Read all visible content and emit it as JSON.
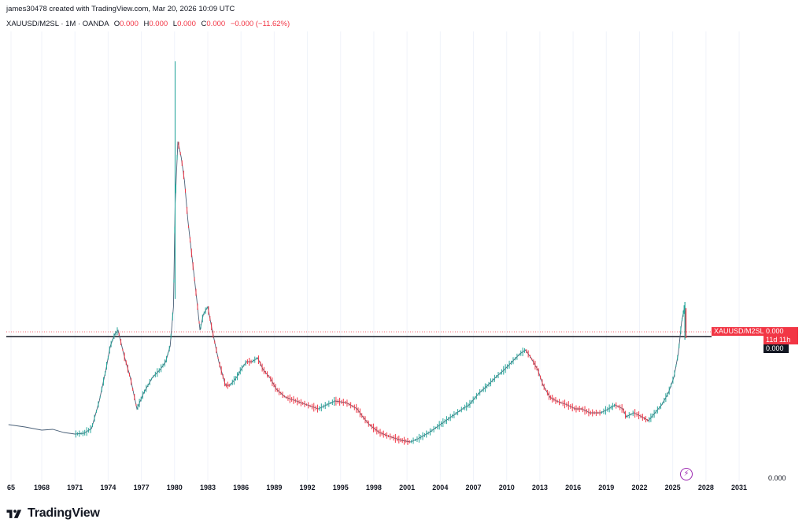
{
  "header": {
    "credit": "james30478 created with TradingView.com, Mar 20, 2026 10:09 UTC",
    "symbol": "XAUUSD/M2SL · 1M · OANDA",
    "ohlc": [
      {
        "key": "O",
        "value": "0.000"
      },
      {
        "key": "H",
        "value": "0.000"
      },
      {
        "key": "L",
        "value": "0.000"
      },
      {
        "key": "C",
        "value": "0.000"
      }
    ],
    "change": "−0.000 (−11.62%)"
  },
  "price_scale": {
    "symbol_tag": "XAUUSD/M2SL",
    "last_price": "0.000",
    "countdown": "11d 11h",
    "line_label": "0.000",
    "axis_label": "0.000"
  },
  "footer": {
    "logo_text": "TradingView"
  },
  "colors": {
    "up": "#26a69a",
    "down": "#f23645",
    "line": "#131722",
    "series_line": "#4a6078"
  },
  "chart_data": {
    "type": "line",
    "title": "",
    "xlabel": "",
    "ylabel": "",
    "x_ticks": [
      "65",
      "1968",
      "1971",
      "1974",
      "1977",
      "1980",
      "1983",
      "1986",
      "1989",
      "1992",
      "1995",
      "1998",
      "2001",
      "2004",
      "2007",
      "2010",
      "2013",
      "2016",
      "2019",
      "2022",
      "2025",
      "2028",
      "2031"
    ],
    "xlim": [
      1964.8,
      2033.2
    ],
    "grid": "vertical",
    "series": [
      {
        "x": [
          1965.0,
          1966.5,
          1968.0,
          1969.0,
          1970.0,
          1971.0,
          1971.8,
          1972.5,
          1973.2,
          1973.8,
          1974.2,
          1974.6,
          1974.9,
          1975.4,
          1976.0,
          1976.6,
          1977.2,
          1978.0,
          1978.7,
          1979.2,
          1979.6,
          1979.9,
          1980.05,
          1980.3,
          1980.6,
          1980.9,
          1981.2,
          1981.6,
          1982.0,
          1982.3,
          1982.6,
          1983.0,
          1983.4,
          1984.0,
          1984.6,
          1985.0,
          1985.6,
          1986.0,
          1986.5,
          1987.0,
          1987.5,
          1988.0,
          1988.6,
          1989.2,
          1990.0,
          1991.0,
          1992.0,
          1993.0,
          1993.7,
          1994.5,
          1995.5,
          1996.5,
          1997.0,
          1997.6,
          1998.5,
          1999.4,
          2000.5,
          2001.3,
          2002.0,
          2003.0,
          2004.0,
          2005.0,
          2006.0,
          2006.6,
          2007.5,
          2008.3,
          2009.0,
          2009.8,
          2010.5,
          2011.2,
          2011.7,
          2012.2,
          2012.8,
          2013.3,
          2013.9,
          2014.5,
          2015.5,
          2016.2,
          2016.8,
          2017.5,
          2018.5,
          2019.2,
          2019.8,
          2020.5,
          2020.8,
          2021.5,
          2022.2,
          2022.8,
          2023.4,
          2024.0,
          2024.6,
          2025.1,
          2025.5,
          2025.8,
          2026.0,
          2026.1,
          2026.2
        ],
        "y": [
          540,
          543,
          547,
          546,
          550,
          552,
          551,
          545,
          510,
          470,
          440,
          425,
          420,
          450,
          480,
          520,
          500,
          480,
          470,
          460,
          440,
          390,
          260,
          180,
          200,
          230,
          280,
          330,
          380,
          420,
          400,
          390,
          420,
          460,
          490,
          490,
          480,
          470,
          460,
          460,
          455,
          470,
          480,
          495,
          505,
          510,
          515,
          520,
          515,
          510,
          512,
          520,
          530,
          540,
          550,
          555,
          560,
          562,
          558,
          550,
          540,
          530,
          520,
          515,
          500,
          490,
          480,
          470,
          460,
          450,
          445,
          455,
          470,
          490,
          505,
          510,
          515,
          520,
          520,
          525,
          525,
          520,
          515,
          520,
          530,
          525,
          530,
          535,
          525,
          515,
          500,
          480,
          450,
          410,
          395,
          390,
          430
        ]
      }
    ],
    "horizontal_line": {
      "y": 428
    }
  }
}
